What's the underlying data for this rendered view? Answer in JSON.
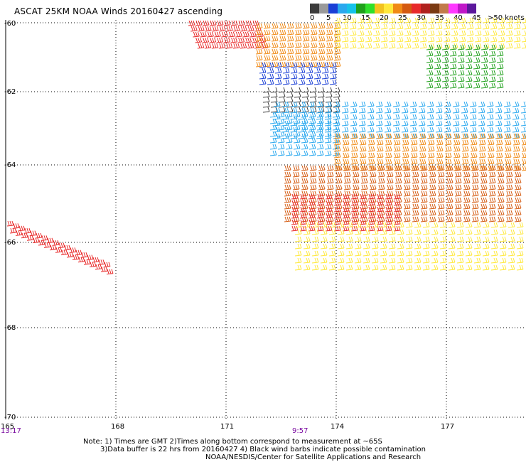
{
  "title": "ASCAT 25KM NOAA Winds 20160427 ascending",
  "legend": {
    "labels": [
      "0",
      "5",
      "10",
      "15",
      "20",
      "25",
      "30",
      "35",
      "40",
      "45",
      ">50 knots"
    ],
    "colors": [
      "#3c3c3c",
      "#9a9a9a",
      "#1a3fd6",
      "#2aa8ee",
      "#16c2e8",
      "#1ea01a",
      "#2ee02a",
      "#f2c21e",
      "#ffe83a",
      "#f08a14",
      "#d45a10",
      "#e82a2a",
      "#b0221e",
      "#7a3a12",
      "#c27a4a",
      "#ff38ff",
      "#c018c8",
      "#5c189c"
    ]
  },
  "map": {
    "lat_labels": [
      "-60",
      "-62",
      "-64",
      "-66",
      "-68",
      "-70"
    ],
    "lon_labels": [
      "165",
      "168",
      "171",
      "174",
      "177"
    ],
    "time_labels": [
      "13:17",
      "9:57"
    ],
    "time_color": "#7a0aa0"
  },
  "footer": {
    "line1": "Note: 1) Times are GMT 2)Times along bottom correspond to measurement at ~65S",
    "line2": "3)Data buffer is 22 hrs from 20160427 4) Black wind barbs indicate possible contamination",
    "line3": "NOAA/NESDIS/Center for Satellite Applications and Research"
  },
  "wind_regions": [
    {
      "speed_knots": 30,
      "color": "#e82a2a"
    },
    {
      "speed_knots": 25,
      "color": "#f08a14"
    },
    {
      "speed_knots": 20,
      "color": "#ffe83a"
    },
    {
      "speed_knots": 15,
      "color": "#1ea01a"
    },
    {
      "speed_knots": 10,
      "color": "#1a3fd6"
    },
    {
      "speed_knots": 10,
      "color": "#2aa8ee"
    },
    {
      "speed_knots": 5,
      "color": "#3c3c3c"
    },
    {
      "speed_knots": 25,
      "color": "#d45a10"
    }
  ]
}
